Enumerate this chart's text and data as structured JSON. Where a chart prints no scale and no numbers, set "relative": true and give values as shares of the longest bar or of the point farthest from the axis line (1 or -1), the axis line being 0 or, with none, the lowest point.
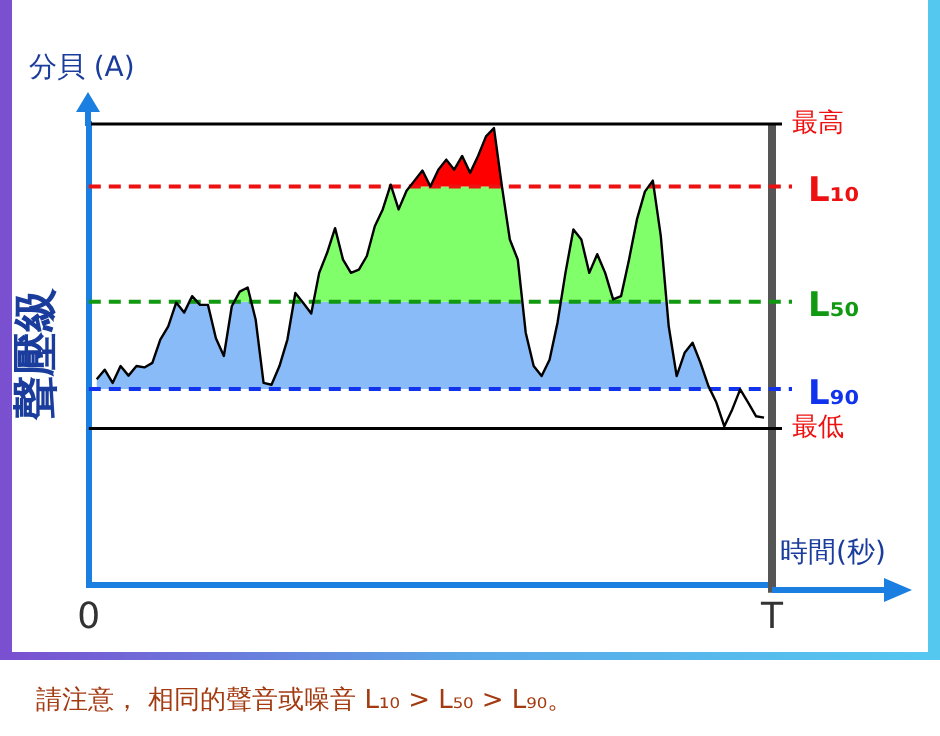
{
  "chart_data": {
    "type": "area",
    "relative": true,
    "ylabel": "聲壓級",
    "xlabel": "時間(秒)",
    "annotations": [
      "分貝 (A)",
      "請注意， 相同的聲音或噪音 L₁₀ > L₅₀ > L₉₀。"
    ],
    "categories": [
      "0",
      null,
      null,
      null,
      null,
      null,
      null,
      null,
      null,
      null,
      null,
      null,
      null,
      null,
      null,
      null,
      null,
      null,
      null,
      null,
      null,
      null,
      null,
      null,
      null,
      null,
      null,
      null,
      null,
      null,
      null,
      null,
      null,
      null,
      null,
      null,
      null,
      null,
      null,
      null,
      null,
      null,
      null,
      null,
      null,
      null,
      null,
      null,
      null,
      null,
      null,
      null,
      null,
      null,
      null,
      null,
      null,
      null,
      null,
      null,
      null,
      null,
      null,
      null,
      null,
      null,
      null,
      null,
      null,
      null,
      null,
      null,
      null,
      null,
      null,
      null,
      null,
      null,
      null,
      null,
      null,
      null,
      null,
      null,
      null,
      null,
      "T"
    ],
    "series": [
      {
        "color": "#000000",
        "values": [
          null,
          0.45,
          0.471,
          0.442,
          0.479,
          0.458,
          0.479,
          0.476,
          0.486,
          0.537,
          0.566,
          0.618,
          0.596,
          0.632,
          0.613,
          0.613,
          0.54,
          0.501,
          0.61,
          0.642,
          0.651,
          0.581,
          0.442,
          0.438,
          0.479,
          0.537,
          0.639,
          0.617,
          0.594,
          0.683,
          0.727,
          0.781,
          0.712,
          0.683,
          0.69,
          0.72,
          0.785,
          0.822,
          0.876,
          0.822,
          0.863,
          0.885,
          0.907,
          0.872,
          0.909,
          0.931,
          0.909,
          0.939,
          0.902,
          0.939,
          0.982,
          1.0,
          0.873,
          0.756,
          0.712,
          0.552,
          0.479,
          0.457,
          0.493,
          0.574,
          0.683,
          0.778,
          0.756,
          0.683,
          0.724,
          0.683,
          0.625,
          0.632,
          0.712,
          0.8,
          0.861,
          0.885,
          0.764,
          0.566,
          0.457,
          0.508,
          0.53,
          0.486,
          0.435,
          0.399,
          0.347,
          0.384,
          0.428,
          0.399,
          0.369,
          0.366,
          null
        ]
      }
    ],
    "ref_lines": [
      {
        "axis": "y",
        "value": 1.009,
        "label": "最高",
        "color": "#000000",
        "line_style": "solid"
      },
      {
        "axis": "y",
        "value": 0.872,
        "label": "L₁₀",
        "color": "#ee1111",
        "line_style": "dashed"
      },
      {
        "axis": "y",
        "value": 0.62,
        "label": "L₅₀",
        "color": "#119911",
        "line_style": "dashed"
      },
      {
        "axis": "y",
        "value": 0.429,
        "label": "L₉₀",
        "color": "#1133ee",
        "line_style": "dashed"
      },
      {
        "axis": "y",
        "value": 0.342,
        "label": "最低",
        "color": "#000000",
        "line_style": "solid"
      }
    ],
    "legend": false,
    "grid": "x",
    "marker": "none",
    "line_style": "solid"
  }
}
